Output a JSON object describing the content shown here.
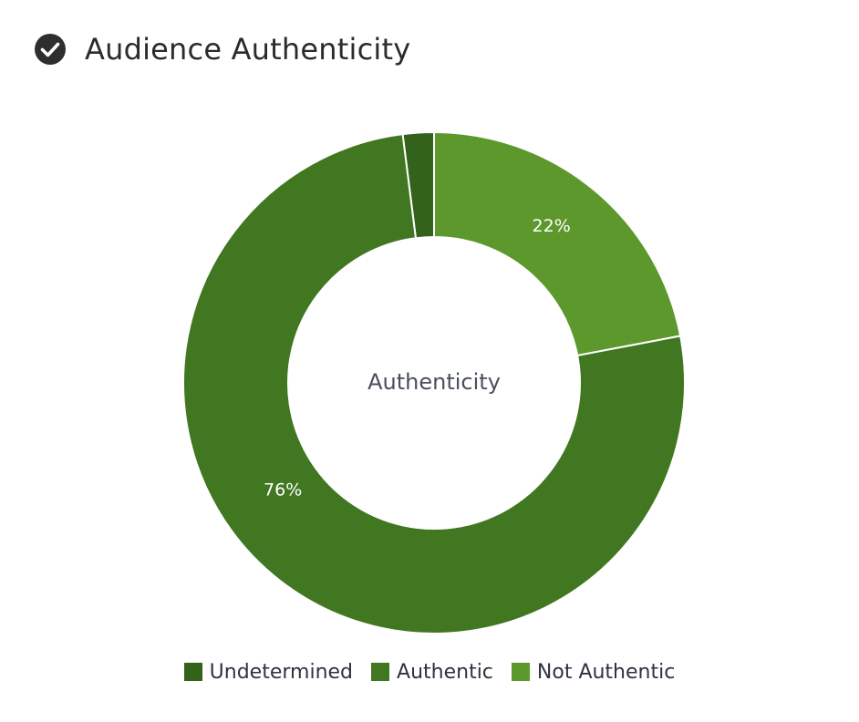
{
  "header": {
    "title": "Audience Authenticity",
    "icon": "check-circle-icon"
  },
  "chart_data": {
    "type": "pie",
    "subtype": "donut",
    "title": "Audience Authenticity",
    "center_label": "Authenticity",
    "series": [
      {
        "name": "Undetermined",
        "value": 2,
        "color": "#33621a",
        "label": ""
      },
      {
        "name": "Not Authentic",
        "value": 22,
        "color": "#5d982d",
        "label": "22%"
      },
      {
        "name": "Authentic",
        "value": 76,
        "color": "#417721",
        "label": "76%"
      }
    ],
    "legend": {
      "placement": "bottom",
      "items": [
        {
          "name": "Undetermined",
          "color": "#33621a"
        },
        {
          "name": "Authentic",
          "color": "#417721"
        },
        {
          "name": "Not Authentic",
          "color": "#5d982d"
        }
      ]
    }
  }
}
